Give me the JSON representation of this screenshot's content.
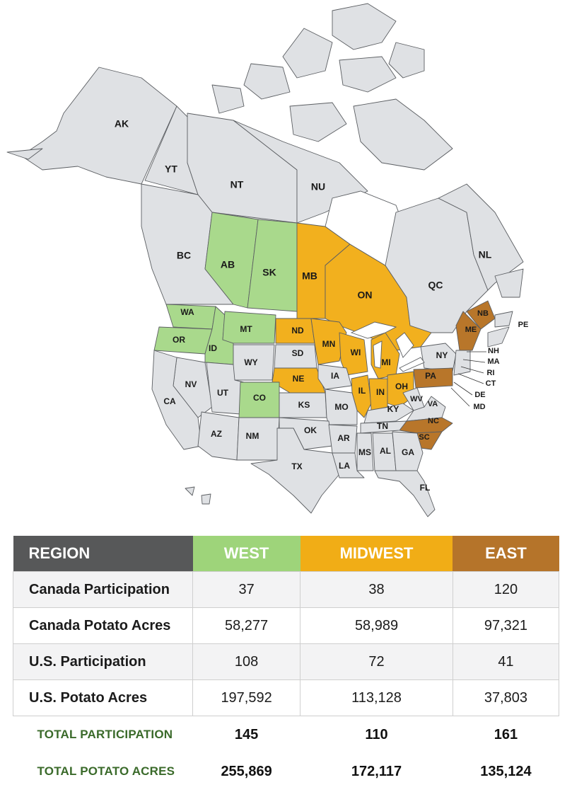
{
  "map": {
    "labels": {
      "AK": "AK",
      "YT": "YT",
      "NT": "NT",
      "NU": "NU",
      "BC": "BC",
      "AB": "AB",
      "SK": "SK",
      "MB": "MB",
      "ON": "ON",
      "QC": "QC",
      "NL": "NL",
      "NB": "NB",
      "PE": "PE",
      "ME": "ME",
      "WA": "WA",
      "OR": "OR",
      "ID": "ID",
      "MT": "MT",
      "WY": "WY",
      "ND": "ND",
      "SD": "SD",
      "NE": "NE",
      "MN": "MN",
      "WI": "WI",
      "MI": "MI",
      "IA": "IA",
      "IL": "IL",
      "IN": "IN",
      "OH": "OH",
      "NY": "NY",
      "PA": "PA",
      "NH": "NH",
      "MA": "MA",
      "RI": "RI",
      "CT": "CT",
      "DE": "DE",
      "MD": "MD",
      "NV": "NV",
      "UT": "UT",
      "CO": "CO",
      "CA": "CA",
      "KS": "KS",
      "MO": "MO",
      "KY": "KY",
      "WV": "WV",
      "VA": "VA",
      "NC": "NC",
      "SC": "SC",
      "TN": "TN",
      "AZ": "AZ",
      "NM": "NM",
      "OK": "OK",
      "AR": "AR",
      "MS": "MS",
      "AL": "AL",
      "GA": "GA",
      "TX": "TX",
      "LA": "LA",
      "FL": "FL"
    },
    "colors": {
      "west": "#a9d98c",
      "midwest": "#f2b01e",
      "east": "#b8762a",
      "other": "#dfe1e4"
    }
  },
  "table": {
    "header": {
      "region": "REGION",
      "west": "WEST",
      "midwest": "MIDWEST",
      "east": "EAST"
    },
    "rows": [
      {
        "label": "Canada Participation",
        "west": "37",
        "midwest": "38",
        "east": "120"
      },
      {
        "label": "Canada Potato Acres",
        "west": "58,277",
        "midwest": "58,989",
        "east": "97,321"
      },
      {
        "label": "U.S. Participation",
        "west": "108",
        "midwest": "72",
        "east": "41"
      },
      {
        "label": "U.S. Potato Acres",
        "west": "197,592",
        "midwest": "113,128",
        "east": "37,803"
      }
    ],
    "totals": [
      {
        "label": "TOTAL PARTICIPATION",
        "west": "145",
        "midwest": "110",
        "east": "161"
      },
      {
        "label": "TOTAL POTATO ACRES",
        "west": "255,869",
        "midwest": "172,117",
        "east": "135,124"
      }
    ]
  }
}
